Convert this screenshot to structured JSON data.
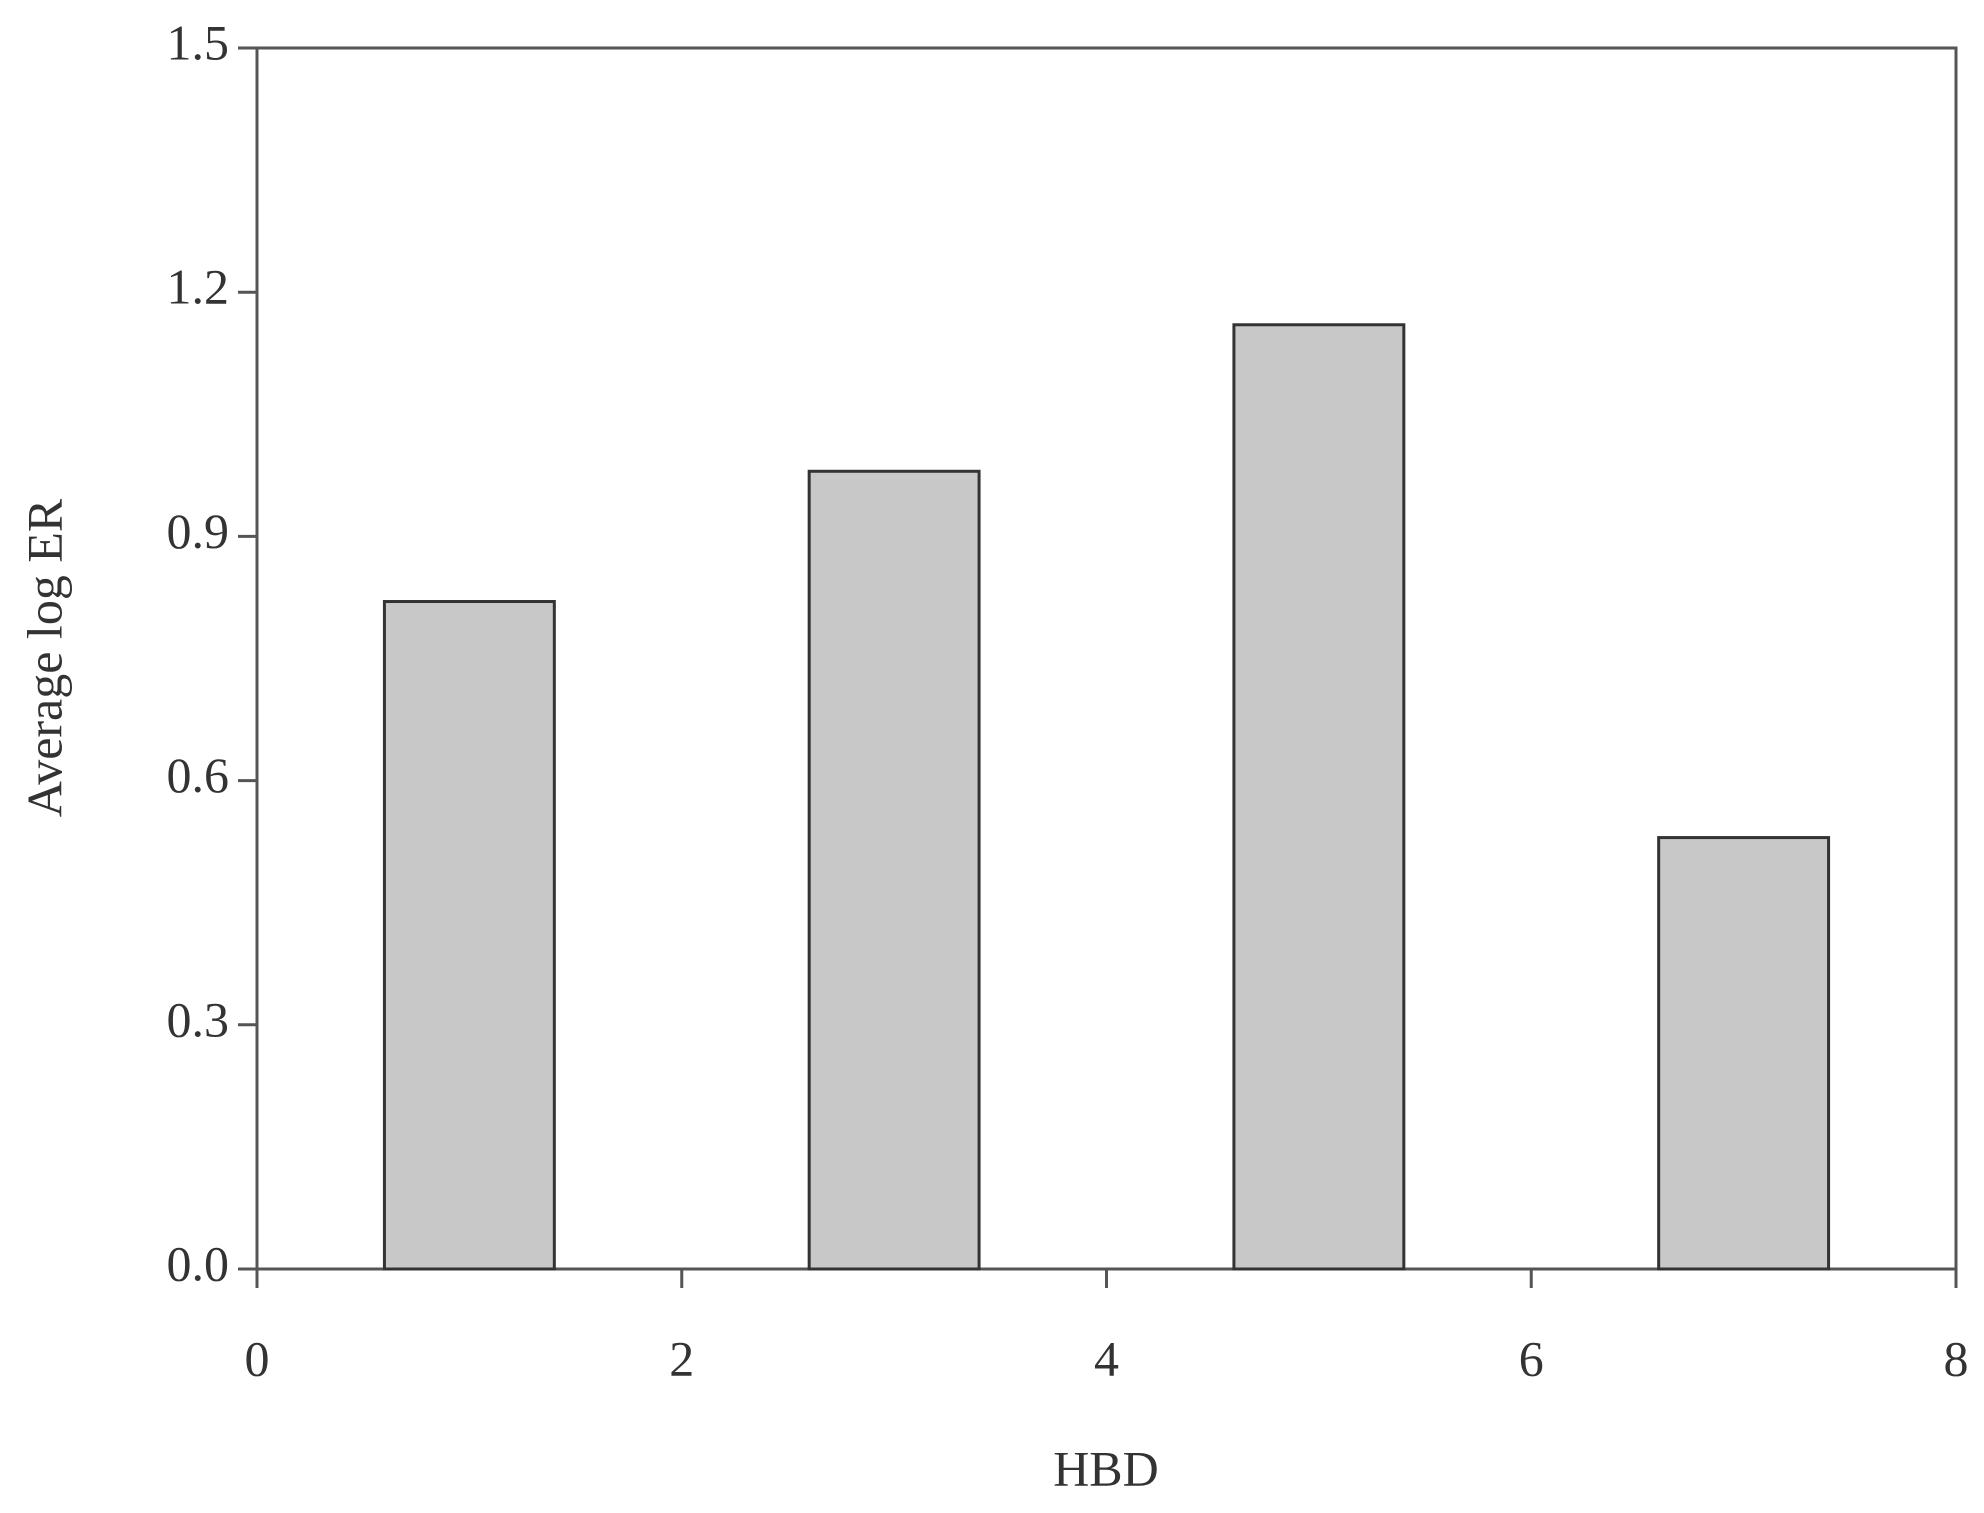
{
  "chart_data": {
    "type": "bar",
    "x": [
      1,
      3,
      5,
      7
    ],
    "values": [
      0.82,
      0.98,
      1.16,
      0.53
    ],
    "bar_width": 0.8,
    "color": "#c8c8c8",
    "xlabel": "HBD",
    "ylabel": "Average log ER",
    "xlim": [
      0,
      8
    ],
    "xticks": [
      0,
      2,
      4,
      6,
      8
    ],
    "ylim": [
      0,
      1.5
    ],
    "yticks": [
      {
        "value": 0,
        "label": "0.0"
      },
      0.3,
      0.6,
      0.9,
      1.2,
      1.5
    ],
    "grid": false
  }
}
